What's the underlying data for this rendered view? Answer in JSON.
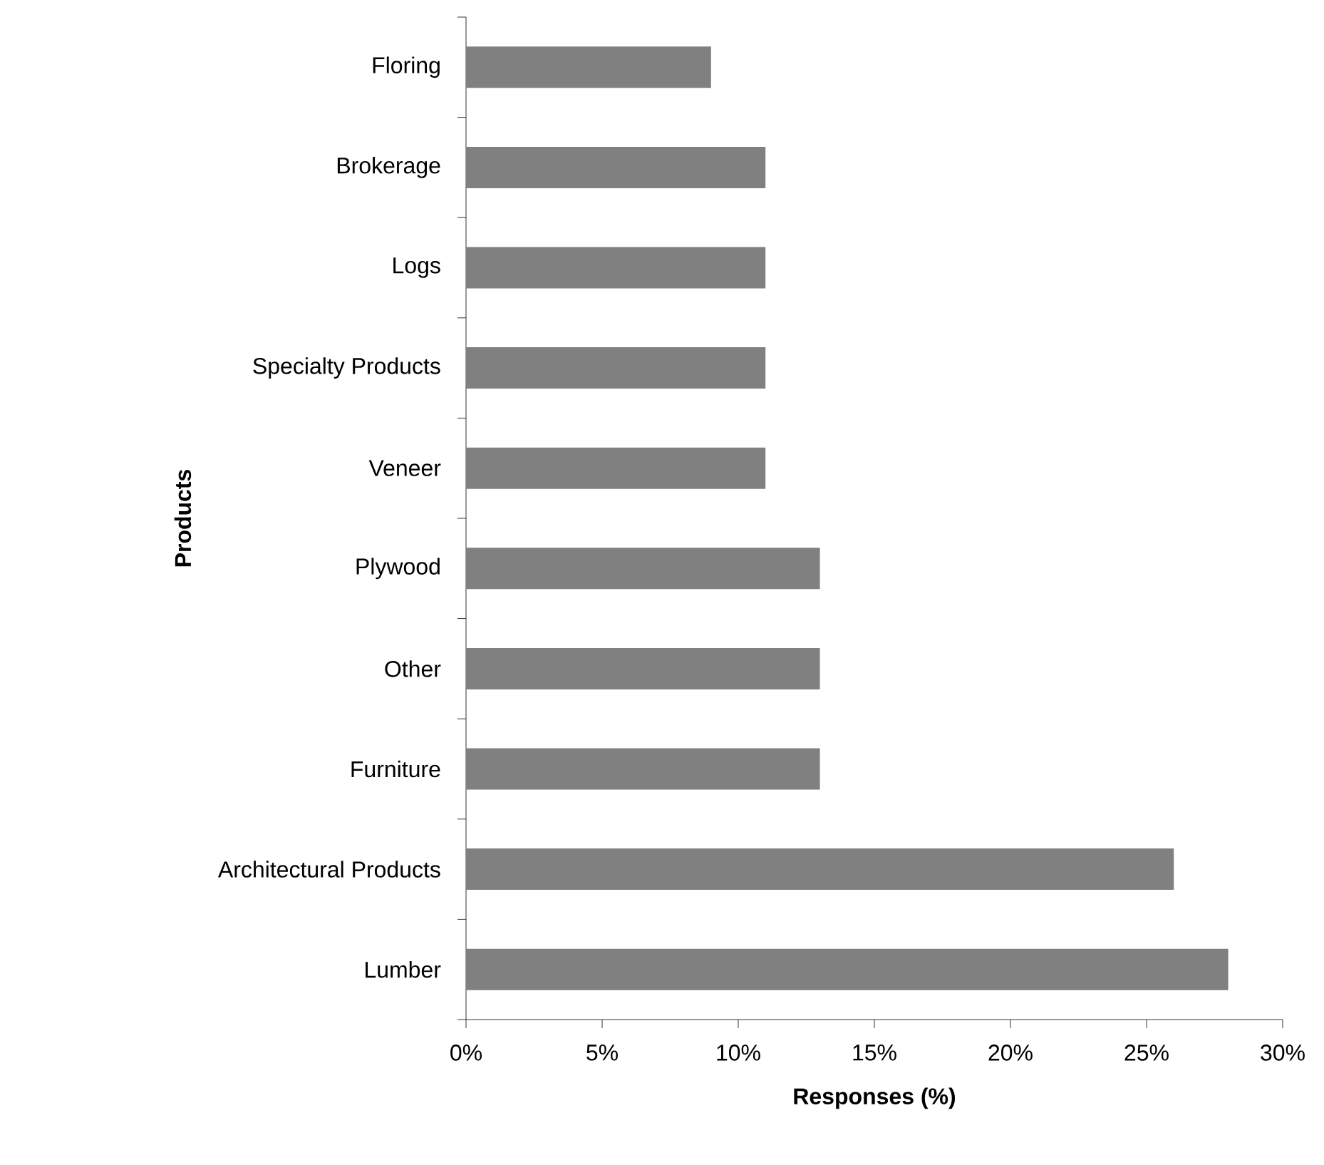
{
  "chart_data": {
    "type": "bar",
    "orientation": "horizontal",
    "xlabel": "Responses (%)",
    "ylabel": "Products",
    "categories": [
      "Floring",
      "Brokerage",
      "Logs",
      "Specialty Products",
      "Veneer",
      "Plywood",
      "Other",
      "Furniture",
      "Architectural Products",
      "Lumber"
    ],
    "values": [
      9,
      11,
      11,
      11,
      11,
      13,
      13,
      13,
      26,
      28
    ],
    "color": "#808080",
    "xlim": [
      0,
      30
    ],
    "xticks": [
      {
        "value": 0,
        "label": "0%"
      },
      {
        "value": 5,
        "label": "5%"
      },
      {
        "value": 10,
        "label": "10%"
      },
      {
        "value": 15,
        "label": "15%"
      },
      {
        "value": 20,
        "label": "20%"
      },
      {
        "value": 25,
        "label": "25%"
      },
      {
        "value": 30,
        "label": "30%"
      }
    ],
    "grid": false
  }
}
